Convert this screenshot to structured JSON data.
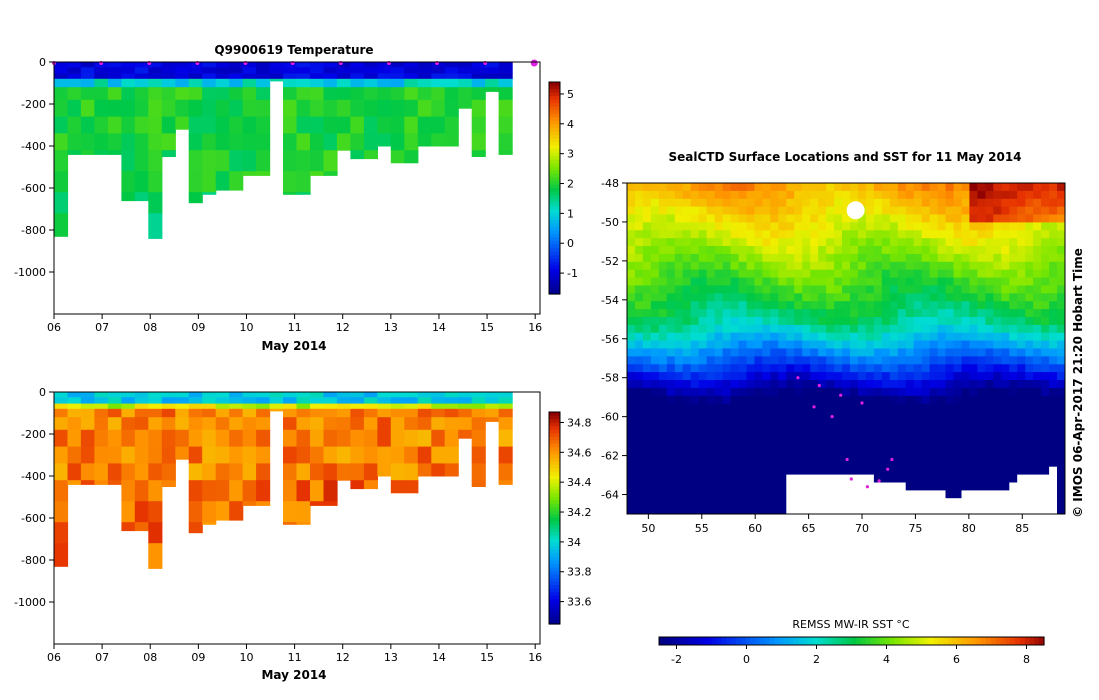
{
  "chart_data": [
    {
      "type": "heatmap",
      "title": "Q9900619  Temperature",
      "xlabel": "May 2014",
      "ylabel": "",
      "x_ticks": [
        "06",
        "07",
        "08",
        "09",
        "10",
        "11",
        "12",
        "13",
        "14",
        "15",
        "16"
      ],
      "y_ticks": [
        "0",
        "-200",
        "-400",
        "-600",
        "-800",
        "-1000"
      ],
      "xlim": [
        6,
        16.1
      ],
      "ylim": [
        -1200,
        0
      ],
      "colorbar": {
        "ticks": [
          "-1",
          "0",
          "1",
          "2",
          "3",
          "4",
          "5"
        ],
        "range": [
          -1.7,
          5.4
        ]
      },
      "profile_days": [
        6.0,
        6.28,
        6.56,
        6.84,
        7.12,
        7.4,
        7.68,
        7.96,
        8.24,
        8.52,
        8.8,
        9.08,
        9.36,
        9.64,
        9.92,
        10.2,
        10.48,
        10.76,
        11.04,
        11.32,
        11.6,
        11.88,
        12.16,
        12.44,
        12.72,
        13.0,
        13.28,
        13.56,
        13.84,
        14.12,
        14.4,
        14.68,
        14.96,
        15.24
      ],
      "profile_max_depth": [
        830,
        440,
        440,
        440,
        440,
        660,
        660,
        840,
        450,
        320,
        670,
        630,
        610,
        610,
        540,
        540,
        90,
        630,
        630,
        540,
        540,
        420,
        460,
        460,
        400,
        480,
        480,
        400,
        400,
        400,
        220,
        450,
        140,
        440
      ],
      "upper_temp": [
        -1.2,
        1.6
      ],
      "deep_temp": [
        1.7,
        2.3
      ],
      "markers_days": [
        6.0,
        6.98,
        7.98,
        8.98,
        9.98,
        10.96,
        11.96,
        12.96,
        13.96,
        14.96,
        15.98
      ]
    },
    {
      "type": "heatmap",
      "title": "",
      "xlabel": "May 2014",
      "ylabel": "",
      "x_ticks": [
        "06",
        "07",
        "08",
        "09",
        "10",
        "11",
        "12",
        "13",
        "14",
        "15",
        "16"
      ],
      "y_ticks": [
        "0",
        "-200",
        "-400",
        "-600",
        "-800",
        "-1000"
      ],
      "xlim": [
        6,
        16.1
      ],
      "ylim": [
        -1200,
        0
      ],
      "colorbar": {
        "ticks": [
          "33.6",
          "33.8",
          "34",
          "34.2",
          "34.4",
          "34.6",
          "34.8"
        ],
        "range": [
          33.45,
          34.87
        ]
      },
      "surface_salinity": [
        33.9,
        34.05
      ],
      "deep_salinity": [
        34.55,
        34.75
      ]
    },
    {
      "type": "heatmap",
      "title": "SealCTD Surface Locations and SST for 11 May 2014",
      "xlabel": "",
      "ylabel": "",
      "x_ticks": [
        "50",
        "55",
        "60",
        "65",
        "70",
        "75",
        "80",
        "85"
      ],
      "y_ticks": [
        "-48",
        "-50",
        "-52",
        "-54",
        "-56",
        "-58",
        "-60",
        "-62",
        "-64"
      ],
      "xlim": [
        48,
        89
      ],
      "ylim": [
        -65,
        -48
      ],
      "colorbar": {
        "title": "REMSS MW-IR SST °C",
        "ticks": [
          "-2",
          "0",
          "2",
          "4",
          "6",
          "8"
        ],
        "range": [
          -2.5,
          8.5
        ]
      },
      "side_label": "© IMOS 06-Apr-2017 21:20 Hobart Time"
    }
  ],
  "colors": {
    "frame": "#000000",
    "marker": "#e020e0",
    "land": "#ffffff"
  }
}
